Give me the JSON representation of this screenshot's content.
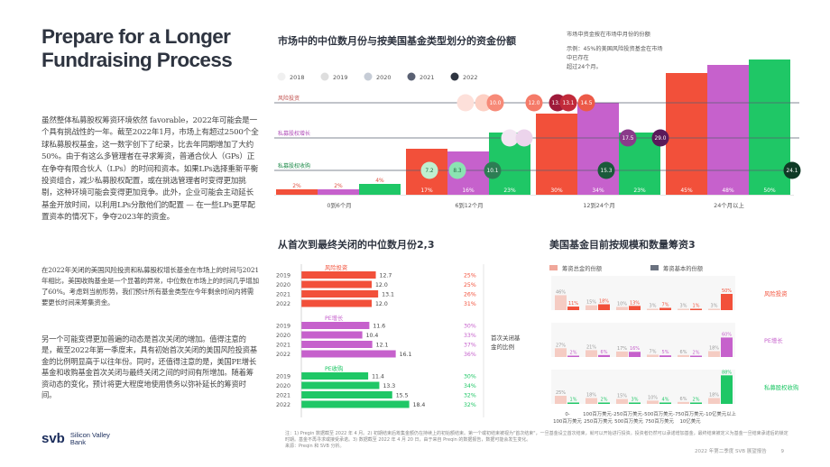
{
  "page": {
    "title": "Prepare for a Longer Fundraising Process",
    "para1": "虽然整体私募股权筹资环境依然 favorable，2022年可能会是一个具有挑战性的一年。截至2022年1月，市场上有超过2500个全球私募股权基金，这一数字创下了纪录，比去年同期增加了大约50%。由于有这么多管理者在寻求筹资，普通合伙人（GPs）正在争夺有限合伙人（LPs）的时间和资本。如果LPs选择重新平衡投资组合，减少私募股权配置，或在挑选管理者时变得更加挑剔，这种环境可能会变得更加竞争。此外，企业可能会主动延长基金开放时间，以利用LPs分散他们的配置 — 在一些LPs更早配置资本的情况下，争夺2023年的资金。",
    "para2": "在2022年关闭的美国风险投资和私募股权增长基金在市场上的时间与2021年相比，美国收购基金是一个显著的异常，中位数在市场上的时间几乎增加了60%。考虑到当前形势，我们预计所有基金类型在今年剩余时间内将需要更长时间来筹集资金。",
    "para3": "另一个可能变得更加普遍的动态是首次关闭的增加。值得注意的是，截至2022年第一季度末，具有初始首次关闭的美国风险投资基金的比例明显高于以往年份。同时，还值得注意的是，美国PE增长基金和收购基金首次关闭与最终关闭之间的时间有所增加。随着筹资动态的变化，预计将更大程度地使用债务以弥补延长的筹资时间。",
    "logo_mark": "svb",
    "logo_text": "Silicon Valley Bank",
    "footnote": "注：1) Pregin 数据截至 2022 年 4 月。2) 初期结束后筹集金额仍在持续上的初始额结束。第一个或初结束被视为\"首次结束\"，一旦基金设立首次结束，就可以开始进行投资。投资者仍然可以承诺增加基金，最终结束被定义为基金一旦结束承诺后的锁定时期。基金不再寻求或接受承诺。3) 数据截至 2022 年 4 月 20 日，由于来自 Preqin 的数据报告，数据可能会发生变化。",
    "source": "来源：Preqin 和 SVB 分析。",
    "page_footer": "2022 年第二季度 SVB 展望报告",
    "page_number": "9"
  },
  "chart_data": [
    {
      "type": "bar",
      "title": "市场中的中位数月份与按美国基金类型划分的资金份额",
      "annotation": [
        "市场中资金按在市场中月份的份额",
        "示例：45%的美国风险投资基金在市场中已存在",
        "超过24个月。"
      ],
      "legend": [
        "2018",
        "2019",
        "2020",
        "2021",
        "2022"
      ],
      "legend_colors": [
        "#f0f0f0",
        "#dedede",
        "#c6ccd6",
        "#5a6173",
        "#2e3440"
      ],
      "categories": [
        "0到6个月",
        "6到12个月",
        "12到24个月",
        "24个月以上"
      ],
      "series": [
        {
          "name": "风险投资",
          "color": "#f2503a",
          "values": [
            2,
            17,
            30,
            45
          ]
        },
        {
          "name": "私募股权增长",
          "color": "#c661cc",
          "values": [
            2,
            16,
            34,
            48
          ]
        },
        {
          "name": "私募股权收购",
          "color": "#1fc766",
          "values": [
            4,
            23,
            23,
            50
          ]
        }
      ],
      "value_labels": [
        [
          "2%",
          "17%",
          "30%",
          "45%"
        ],
        [
          "2%",
          "16%",
          "34%",
          "48%"
        ],
        [
          "4%",
          "23%",
          "23%",
          "50%"
        ]
      ],
      "median_months": [
        {
          "name": "风险投资",
          "values": [
            "",
            "",
            "10.0",
            "12.0",
            "13.1",
            "13.1",
            "14.5"
          ]
        },
        {
          "name": "私募股权增长",
          "values": [
            "",
            "",
            "",
            "",
            "17.5",
            "29.0"
          ]
        },
        {
          "name": "私募股权收购",
          "values": [
            "7.2",
            "8.3",
            "10.1",
            "15.3",
            "24.1"
          ]
        }
      ]
    },
    {
      "type": "bar",
      "title": "从首次到最终关闭的中位数月份2,3",
      "side_label": "首次关闭基金的比例",
      "groups": [
        {
          "name": "风险投资",
          "color": "#f2503a",
          "years": [
            "2019",
            "2020",
            "2021",
            "2022"
          ],
          "values": [
            12.7,
            12.0,
            13.1,
            12.0
          ],
          "share": [
            "25%",
            "25%",
            "26%",
            "31%"
          ]
        },
        {
          "name": "PE增长",
          "color": "#c661cc",
          "years": [
            "2019",
            "2020",
            "2021",
            "2022"
          ],
          "values": [
            11.6,
            10.4,
            12.1,
            16.1
          ],
          "share": [
            "30%",
            "33%",
            "37%",
            "36%"
          ]
        },
        {
          "name": "PE收购",
          "color": "#1fc766",
          "years": [
            "2019",
            "2020",
            "2021",
            "2022"
          ],
          "values": [
            11.4,
            13.3,
            15.5,
            18.4
          ],
          "share": [
            "30%",
            "34%",
            "32%",
            "32%"
          ]
        }
      ],
      "xlim": [
        0,
        20
      ]
    },
    {
      "type": "bar",
      "title": "美国基金目前按规模和数量筹资3",
      "legend": [
        "筹资总金的份额",
        "筹资基本的份额"
      ],
      "legend_colors": [
        "#f0a79a",
        "#6b7280"
      ],
      "categories": [
        "0到100百万美元",
        "100百万到250百万美元",
        "250百万到500百万美元",
        "500百万到750百万美元",
        "750百万到10亿美元",
        "10亿美元以上"
      ],
      "category_labels": [
        "0-\n100百万美元",
        "100百万美元-\n250百万美元",
        "250百万美元-\n500百万美元",
        "500百万美元-\n750百万美元",
        "750百万美元-\n10亿美元",
        "10亿美元以上"
      ],
      "rows": [
        {
          "name": "风险投资",
          "color": "#f2503a",
          "pairs": [
            [
              46,
              11
            ],
            [
              15,
              18
            ],
            [
              10,
              13
            ],
            [
              3,
              7
            ],
            [
              3,
              1
            ],
            [
              3,
              50
            ]
          ]
        },
        {
          "name": "PE增长",
          "color": "#c661cc",
          "pairs": [
            [
              27,
              2
            ],
            [
              21,
              6
            ],
            [
              17,
              16
            ],
            [
              7,
              5
            ],
            [
              6,
              2
            ],
            [
              18,
              60
            ]
          ]
        },
        {
          "name": "私募股权收购",
          "color": "#1fc766",
          "pairs": [
            [
              25,
              1
            ],
            [
              18,
              2
            ],
            [
              15,
              3
            ],
            [
              10,
              4
            ],
            [
              6,
              2
            ],
            [
              18,
              88
            ]
          ]
        }
      ],
      "pair_labels": [
        [
          [
            "46%",
            "11%"
          ],
          [
            "15%",
            "18%"
          ],
          [
            "10%",
            "13%"
          ],
          [
            "3%",
            "7%"
          ],
          [
            "3%",
            "1%"
          ],
          [
            "3%",
            "50%"
          ]
        ],
        [
          [
            "27%",
            "2%"
          ],
          [
            "21%",
            "6%"
          ],
          [
            "17%",
            "16%"
          ],
          [
            "7%",
            "5%"
          ],
          [
            "6%",
            "2%"
          ],
          [
            "18%",
            "60%"
          ]
        ],
        [
          [
            "25%",
            "1%"
          ],
          [
            "18%",
            "2%"
          ],
          [
            "15%",
            "3%"
          ],
          [
            "10%",
            "4%"
          ],
          [
            "6%",
            "2%"
          ],
          [
            "18%",
            "88%"
          ]
        ]
      ]
    }
  ]
}
